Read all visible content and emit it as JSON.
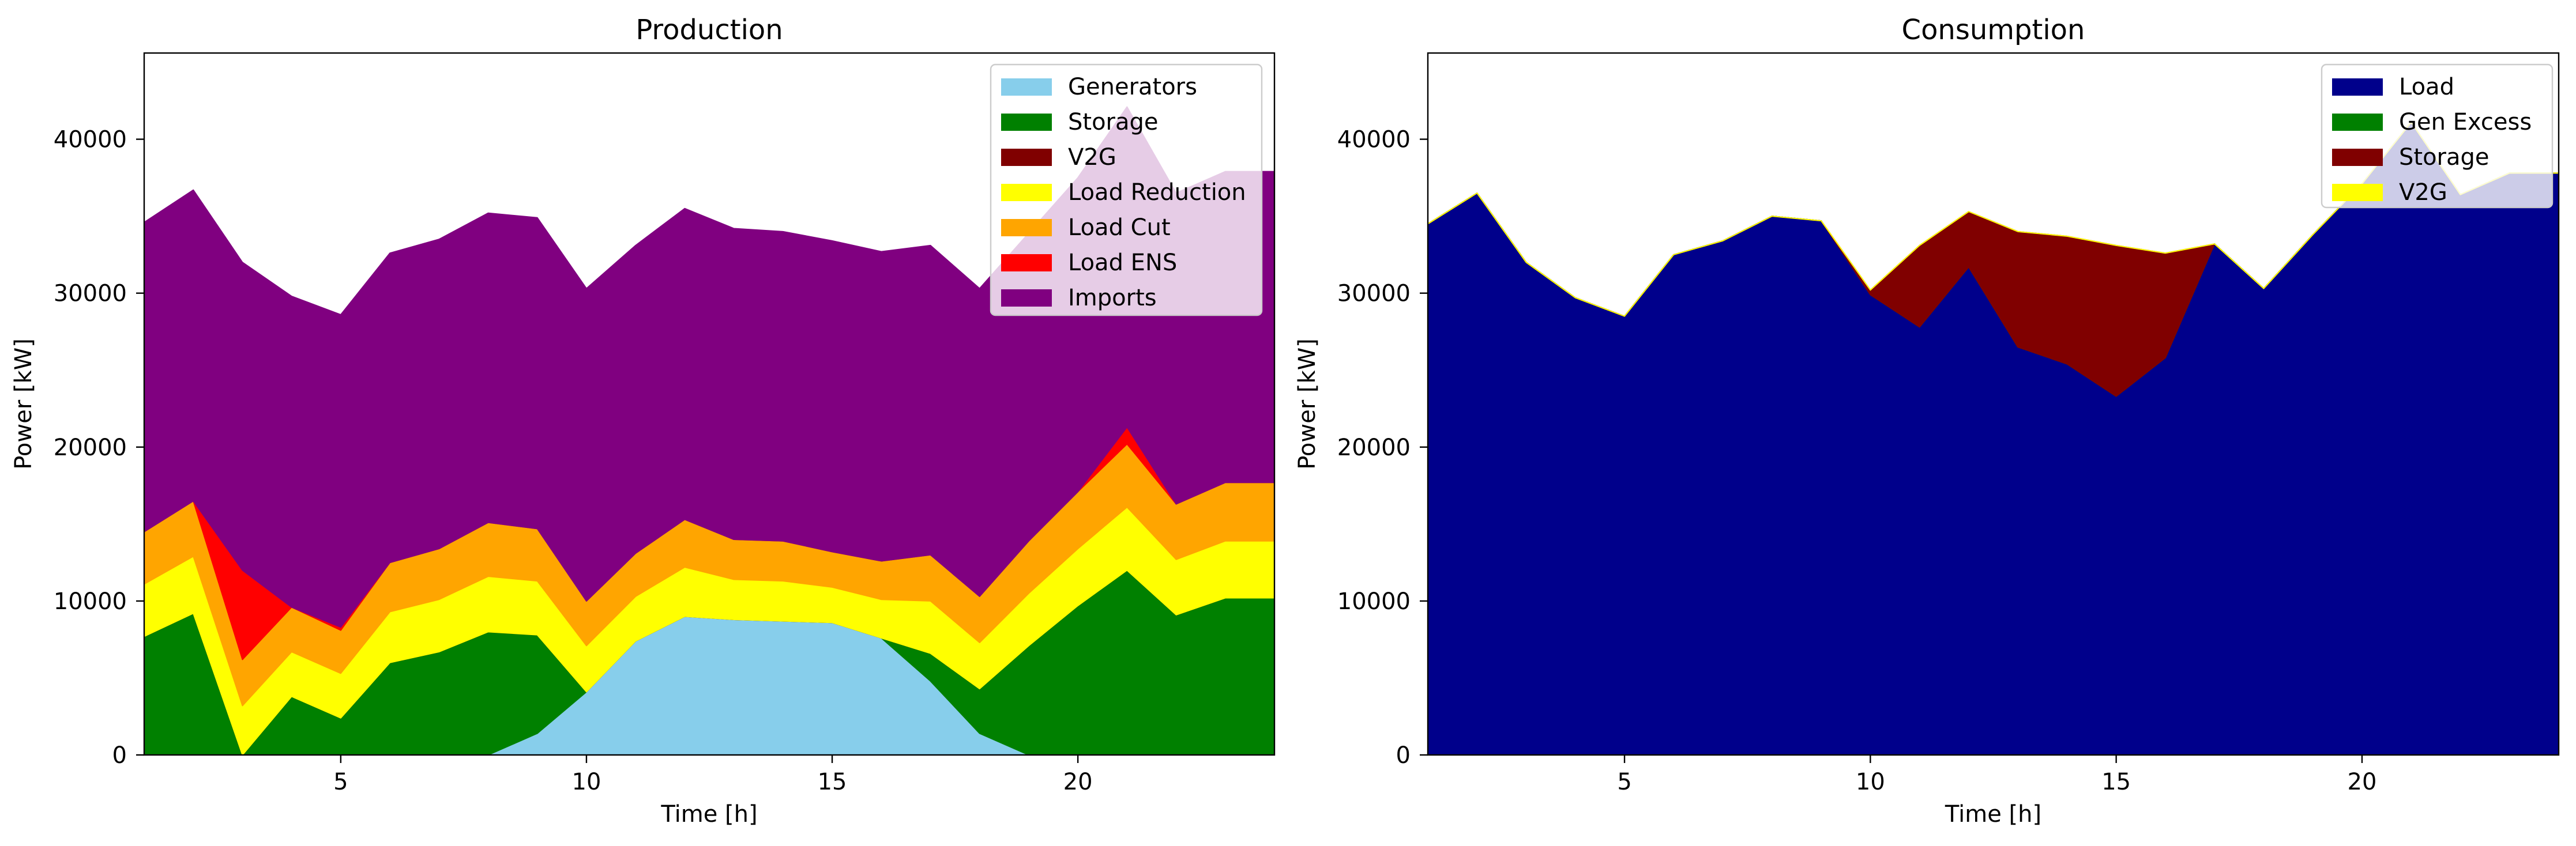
{
  "chart_data": [
    {
      "type": "area",
      "stacked": true,
      "title": "Production",
      "xlabel": "Time [h]",
      "ylabel": "Power [kW]",
      "xlim": [
        1,
        24
      ],
      "ylim": [
        0,
        45600
      ],
      "xticks": [
        5,
        10,
        15,
        20
      ],
      "yticks": [
        0,
        10000,
        20000,
        30000,
        40000
      ],
      "grid": false,
      "legend": "top-right",
      "x": [
        1,
        2,
        3,
        4,
        5,
        6,
        7,
        8,
        9,
        10,
        11,
        12,
        13,
        14,
        15,
        16,
        17,
        18,
        19,
        20,
        21,
        22,
        23,
        24
      ],
      "series": [
        {
          "name": "Generators",
          "color": "#87ceeb",
          "values": [
            0,
            0,
            0,
            0,
            0,
            0,
            0,
            0,
            1400,
            4100,
            7400,
            9000,
            8800,
            8700,
            8600,
            7600,
            4800,
            1400,
            0,
            0,
            0,
            0,
            0,
            0
          ]
        },
        {
          "name": "Storage",
          "color": "#008000",
          "values": [
            7700,
            9200,
            0,
            3800,
            2400,
            6000,
            6700,
            8000,
            6400,
            0,
            0,
            0,
            0,
            0,
            0,
            0,
            1800,
            2900,
            7100,
            9700,
            12000,
            9100,
            10200,
            10200
          ]
        },
        {
          "name": "V2G",
          "color": "#800000",
          "values": [
            0,
            0,
            0,
            0,
            0,
            0,
            0,
            0,
            0,
            0,
            0,
            0,
            0,
            0,
            0,
            0,
            0,
            0,
            0,
            0,
            0,
            0,
            0,
            0
          ]
        },
        {
          "name": "Load Reduction",
          "color": "#ffff00",
          "values": [
            3400,
            3700,
            3200,
            2900,
            2900,
            3300,
            3400,
            3600,
            3500,
            3000,
            2900,
            3200,
            2600,
            2600,
            2300,
            2500,
            3400,
            3000,
            3400,
            3700,
            4100,
            3600,
            3700,
            3700
          ]
        },
        {
          "name": "Load Cut",
          "color": "#ffa500",
          "values": [
            3400,
            3600,
            3000,
            2900,
            2800,
            3200,
            3300,
            3500,
            3400,
            2900,
            2800,
            3100,
            2600,
            2600,
            2300,
            2500,
            3000,
            3000,
            3400,
            3700,
            4100,
            3600,
            3800,
            3800
          ]
        },
        {
          "name": "Load ENS",
          "color": "#ff0000",
          "values": [
            0,
            0,
            5800,
            0,
            200,
            0,
            0,
            0,
            0,
            0,
            0,
            0,
            0,
            0,
            0,
            0,
            0,
            0,
            0,
            0,
            1100,
            0,
            0,
            0
          ]
        },
        {
          "name": "Imports",
          "color": "#800080",
          "values": [
            20100,
            20200,
            20000,
            20200,
            20300,
            20100,
            20100,
            20100,
            20200,
            20300,
            20000,
            20200,
            20200,
            20100,
            20200,
            20100,
            20100,
            20000,
            20000,
            20400,
            20800,
            20200,
            20200,
            20200
          ]
        }
      ]
    },
    {
      "type": "area",
      "stacked": true,
      "title": "Consumption",
      "xlabel": "Time [h]",
      "ylabel": "Power [kW]",
      "xlim": [
        1,
        24
      ],
      "ylim": [
        0,
        45600
      ],
      "xticks": [
        5,
        10,
        15,
        20
      ],
      "yticks": [
        0,
        10000,
        20000,
        30000,
        40000
      ],
      "grid": false,
      "legend": "top-right",
      "x": [
        1,
        2,
        3,
        4,
        5,
        6,
        7,
        8,
        9,
        10,
        11,
        12,
        13,
        14,
        15,
        16,
        17,
        18,
        19,
        20,
        21,
        22,
        23,
        24
      ],
      "series": [
        {
          "name": "Load",
          "color": "#00008b",
          "values": [
            34500,
            36500,
            32000,
            29700,
            28500,
            32500,
            33400,
            35000,
            34700,
            29900,
            27800,
            31700,
            26500,
            25400,
            23300,
            25800,
            33200,
            30300,
            33800,
            37100,
            41100,
            36400,
            37800,
            37800
          ]
        },
        {
          "name": "Gen Excess",
          "color": "#008000",
          "values": [
            0,
            0,
            0,
            0,
            0,
            0,
            0,
            0,
            0,
            0,
            0,
            0,
            0,
            0,
            0,
            0,
            0,
            0,
            0,
            0,
            0,
            0,
            0,
            0
          ]
        },
        {
          "name": "Storage",
          "color": "#800000",
          "values": [
            0,
            0,
            0,
            0,
            0,
            0,
            0,
            0,
            0,
            300,
            5300,
            3600,
            7500,
            8300,
            9800,
            6800,
            0,
            0,
            0,
            0,
            0,
            0,
            0,
            0
          ]
        },
        {
          "name": "V2G",
          "color": "#ffff00",
          "values": [
            0,
            0,
            0,
            0,
            0,
            0,
            0,
            0,
            0,
            0,
            0,
            0,
            0,
            0,
            0,
            0,
            0,
            0,
            0,
            0,
            0,
            0,
            0,
            0
          ]
        }
      ]
    }
  ]
}
